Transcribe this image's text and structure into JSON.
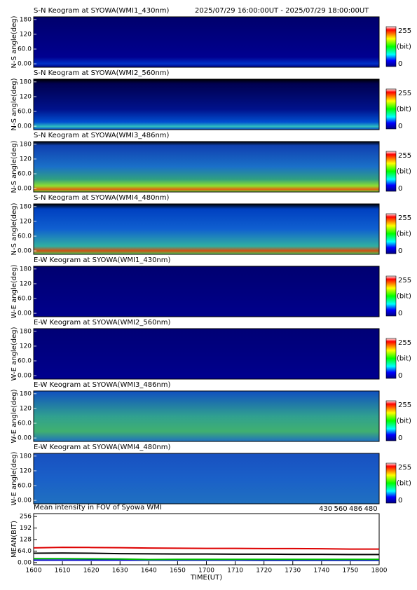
{
  "chart_data": [
    {
      "type": "keogram",
      "title": "S-N Keogram at SYOWA(WMI1_430nm)",
      "subtitle": "2025/07/29 16:00:00UT - 2025/07/29 18:00:00UT",
      "ylabel": "N-S angle(deg)",
      "ylim": [
        -14,
        191
      ],
      "yticks": [
        {
          "value": 0,
          "label": "0.00"
        },
        {
          "value": 60,
          "label": "60.0"
        },
        120,
        180
      ],
      "colorbar": {
        "label": "(bit)",
        "lim": [
          0,
          255
        ],
        "ticks": [
          0,
          255
        ]
      }
    },
    {
      "type": "keogram",
      "title": "S-N Keogram at SYOWA(WMI2_560nm)",
      "ylabel": "N-S angle(deg)",
      "ylim": [
        -14,
        191
      ],
      "yticks": [
        {
          "value": 0,
          "label": "0.00"
        },
        {
          "value": 60,
          "label": "60.0"
        },
        120,
        180
      ],
      "colorbar": {
        "label": "(bit)",
        "lim": [
          0,
          255
        ],
        "ticks": [
          0,
          255
        ]
      }
    },
    {
      "type": "keogram",
      "title": "S-N Keogram at SYOWA(WMI3_486nm)",
      "ylabel": "N-S angle(deg)",
      "ylim": [
        -14,
        191
      ],
      "yticks": [
        {
          "value": 0,
          "label": "0.00"
        },
        {
          "value": 60,
          "label": "60.0"
        },
        120,
        180
      ],
      "colorbar": {
        "label": "(bit)",
        "lim": [
          0,
          255
        ],
        "ticks": [
          0,
          255
        ]
      }
    },
    {
      "type": "keogram",
      "title": "S-N Keogram at SYOWA(WMI4_480nm)",
      "ylabel": "N-S angle(deg)",
      "ylim": [
        -14,
        191
      ],
      "yticks": [
        {
          "value": 0,
          "label": "0.00"
        },
        {
          "value": 60,
          "label": "60.0"
        },
        120,
        180
      ],
      "colorbar": {
        "label": "(bit)",
        "lim": [
          0,
          255
        ],
        "ticks": [
          0,
          255
        ]
      }
    },
    {
      "type": "keogram",
      "title": "E-W Keogram at SYOWA(WMI1_430nm)",
      "ylabel": "W-E angle(deg)",
      "ylim": [
        -14,
        191
      ],
      "yticks": [
        {
          "value": 0,
          "label": "0.00"
        },
        {
          "value": 60,
          "label": "60.0"
        },
        120,
        180
      ],
      "colorbar": {
        "label": "(bit)",
        "lim": [
          0,
          255
        ],
        "ticks": [
          0,
          255
        ]
      }
    },
    {
      "type": "keogram",
      "title": "E-W Keogram at SYOWA(WMI2_560nm)",
      "ylabel": "W-E angle(deg)",
      "ylim": [
        -14,
        191
      ],
      "yticks": [
        {
          "value": 0,
          "label": "0.00"
        },
        {
          "value": 60,
          "label": "60.0"
        },
        120,
        180
      ],
      "colorbar": {
        "label": "(bit)",
        "lim": [
          0,
          255
        ],
        "ticks": [
          0,
          255
        ]
      }
    },
    {
      "type": "keogram",
      "title": "E-W Keogram at SYOWA(WMI3_486nm)",
      "ylabel": "W-E angle(deg)",
      "ylim": [
        -14,
        191
      ],
      "yticks": [
        {
          "value": 0,
          "label": "0.00"
        },
        {
          "value": 60,
          "label": "60.0"
        },
        120,
        180
      ],
      "colorbar": {
        "label": "(bit)",
        "lim": [
          0,
          255
        ],
        "ticks": [
          0,
          255
        ]
      }
    },
    {
      "type": "keogram",
      "title": "E-W Keogram at SYOWA(WMI4_480nm)",
      "ylabel": "W-E angle(deg)",
      "ylim": [
        -14,
        191
      ],
      "yticks": [
        {
          "value": 0,
          "label": "0.00"
        },
        {
          "value": 60,
          "label": "60.0"
        },
        120,
        180
      ],
      "colorbar": {
        "label": "(bit)",
        "lim": [
          0,
          255
        ],
        "ticks": [
          0,
          255
        ]
      }
    },
    {
      "type": "line",
      "title": "Mean intensity in FOV of Syowa WMI",
      "xlabel": "TIME(UT)",
      "ylabel": "MEAN(BIT)",
      "categories": [
        "1600",
        "1610",
        "1620",
        "1630",
        "1640",
        "1650",
        "1700",
        "1710",
        "1720",
        "1730",
        "1740",
        "1750",
        "1800"
      ],
      "ylim": [
        -12,
        272
      ],
      "yticks": [
        {
          "value": 0,
          "label": "0.00"
        },
        {
          "value": 64,
          "label": "64.0"
        },
        128,
        192,
        256
      ],
      "series": [
        {
          "name": "430",
          "color": "#0000cc",
          "values": [
            14,
            14,
            14,
            14,
            14,
            14,
            14,
            14,
            13,
            13,
            13,
            13,
            13
          ]
        },
        {
          "name": "560",
          "color": "#00bb00",
          "values": [
            22,
            22,
            21,
            20,
            17,
            18,
            18,
            18,
            18,
            18,
            18,
            18,
            18
          ]
        },
        {
          "name": "486",
          "color": "#dd0000",
          "values": [
            82,
            85,
            84,
            83,
            81,
            80,
            79,
            79,
            78,
            78,
            77,
            75,
            75
          ]
        },
        {
          "name": "480",
          "color": "#000000",
          "values": [
            52,
            53,
            52,
            50,
            49,
            48,
            48,
            47,
            47,
            46,
            46,
            45,
            45
          ]
        }
      ]
    }
  ]
}
